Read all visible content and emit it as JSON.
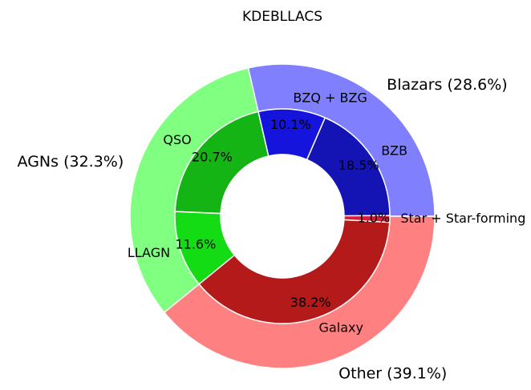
{
  "chart_data": {
    "type": "pie",
    "subtype": "nested-donut",
    "title": "KDEBLLACS",
    "outer_ring": [
      {
        "name": "Blazars",
        "label": "Blazars (28.6%)",
        "percent": 28.6,
        "color": "#8080ff"
      },
      {
        "name": "AGNs",
        "label": "AGNs (32.3%)",
        "percent": 32.3,
        "color": "#80ff80"
      },
      {
        "name": "Other",
        "label": "Other (39.1%)",
        "percent": 39.1,
        "color": "#ff8080"
      }
    ],
    "inner_ring": [
      {
        "name": "BZB",
        "percent": 18.5,
        "pct_label": "18.5%",
        "color": "#1414b4"
      },
      {
        "name": "BZQ + BZG",
        "percent": 10.1,
        "pct_label": "10.1%",
        "color": "#1414dc"
      },
      {
        "name": "QSO",
        "percent": 20.7,
        "pct_label": "20.7%",
        "color": "#14b414"
      },
      {
        "name": "LLAGN",
        "percent": 11.6,
        "pct_label": "11.6%",
        "color": "#14dc14"
      },
      {
        "name": "Galaxy",
        "percent": 38.2,
        "pct_label": "38.2%",
        "color": "#b41a1a"
      },
      {
        "name": "Star + Star-forming",
        "percent": 1.0,
        "pct_label": "1.0%",
        "color": "#dc1a36"
      }
    ],
    "start_angle_deg": 0,
    "direction": "counterclockwise",
    "legend": "none"
  }
}
